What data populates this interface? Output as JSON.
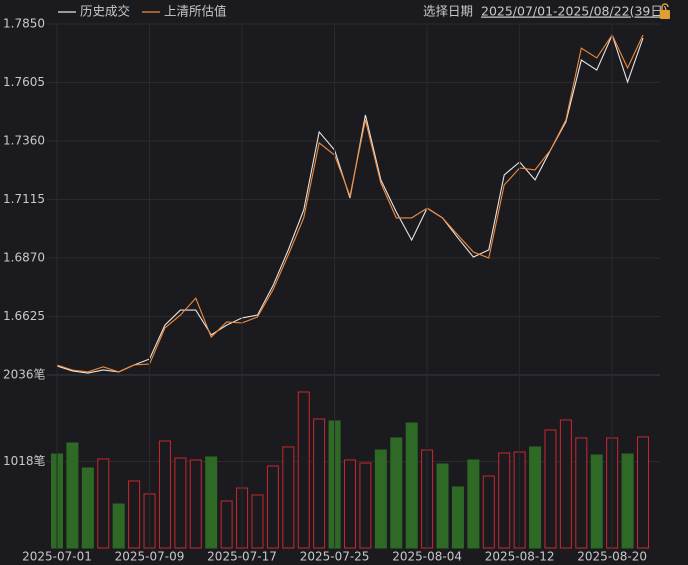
{
  "date_picker": {
    "label": "选择日期",
    "range": "2025/07/01-2025/08/22(39日)"
  },
  "chart_data": [
    {
      "type": "line",
      "series": [
        {
          "name": "历史成交",
          "color": "#e6e6e6",
          "values": [
            1.6418,
            1.6397,
            1.6388,
            1.6401,
            1.6393,
            1.6422,
            1.6447,
            1.6589,
            1.6652,
            1.6652,
            1.6548,
            1.6589,
            1.6619,
            1.6631,
            1.6753,
            1.6904,
            1.7071,
            1.7398,
            1.7322,
            1.7121,
            1.7469,
            1.7197,
            1.7063,
            1.6945,
            1.7079,
            1.7038,
            1.6954,
            1.6874,
            1.6904,
            1.7218,
            1.7272,
            1.7197,
            1.7322,
            1.744,
            1.7699,
            1.7657,
            1.7804,
            1.7607,
            1.7791
          ]
        },
        {
          "name": "上清所估值",
          "color": "#f08a3c",
          "values": [
            1.6422,
            1.6401,
            1.6393,
            1.6414,
            1.6393,
            1.6422,
            1.6426,
            1.6577,
            1.6631,
            1.6702,
            1.6539,
            1.6602,
            1.6598,
            1.6623,
            1.6736,
            1.6883,
            1.7038,
            1.7352,
            1.7301,
            1.713,
            1.7448,
            1.7184,
            1.7038,
            1.7038,
            1.7079,
            1.7038,
            1.6966,
            1.6895,
            1.687,
            1.7176,
            1.7247,
            1.7239,
            1.7322,
            1.7448,
            1.7749,
            1.7708,
            1.7804,
            1.7666,
            1.7804
          ]
        }
      ],
      "ylim": [
        1.638,
        1.785
      ],
      "yticks": [
        {
          "value": 1.785,
          "label": "1.7850"
        },
        1.7605,
        {
          "value": 1.736,
          "label": "1.7360"
        },
        1.7115,
        {
          "value": 1.687,
          "label": "1.6870"
        },
        1.6625
      ],
      "grid": true
    },
    {
      "type": "bar",
      "categories": [
        "2025-07-01",
        null,
        null,
        null,
        null,
        null,
        "2025-07-09",
        null,
        null,
        null,
        null,
        null,
        "2025-07-17",
        null,
        null,
        null,
        null,
        null,
        "2025-07-25",
        null,
        null,
        null,
        null,
        null,
        "2025-08-04",
        null,
        null,
        null,
        null,
        null,
        "2025-08-12",
        null,
        null,
        null,
        null,
        null,
        "2025-08-20",
        null,
        null
      ],
      "values": [
        1106,
        1236,
        942,
        1048,
        518,
        789,
        636,
        1259,
        1059,
        1036,
        1071,
        553,
        706,
        624,
        965,
        1189,
        1836,
        1518,
        1495,
        1036,
        1000,
        1153,
        1295,
        1471,
        1153,
        989,
        718,
        1036,
        847,
        1118,
        1130,
        1189,
        1389,
        1507,
        1295,
        1095,
        1295,
        1106,
        1307
      ],
      "colors": [
        "#2e6a26",
        "#2e6a26",
        "#2e6a26",
        "#c8282c",
        "#2e6a26",
        "#c8282c",
        "#c8282c",
        "#c8282c",
        "#c8282c",
        "#c8282c",
        "#2e6a26",
        "#c8282c",
        "#c8282c",
        "#c8282c",
        "#c8282c",
        "#c8282c",
        "#c8282c",
        "#c8282c",
        "#2e6a26",
        "#c8282c",
        "#c8282c",
        "#2e6a26",
        "#2e6a26",
        "#2e6a26",
        "#c8282c",
        "#2e6a26",
        "#2e6a26",
        "#2e6a26",
        "#c8282c",
        "#c8282c",
        "#c8282c",
        "#2e6a26",
        "#c8282c",
        "#c8282c",
        "#c8282c",
        "#2e6a26",
        "#c8282c",
        "#2e6a26",
        "#c8282c"
      ],
      "ylim": [
        0,
        2036
      ],
      "yticks": [
        {
          "value": 1018,
          "label": "1018笔"
        },
        {
          "value": 2036,
          "label": "2036笔"
        }
      ]
    }
  ]
}
